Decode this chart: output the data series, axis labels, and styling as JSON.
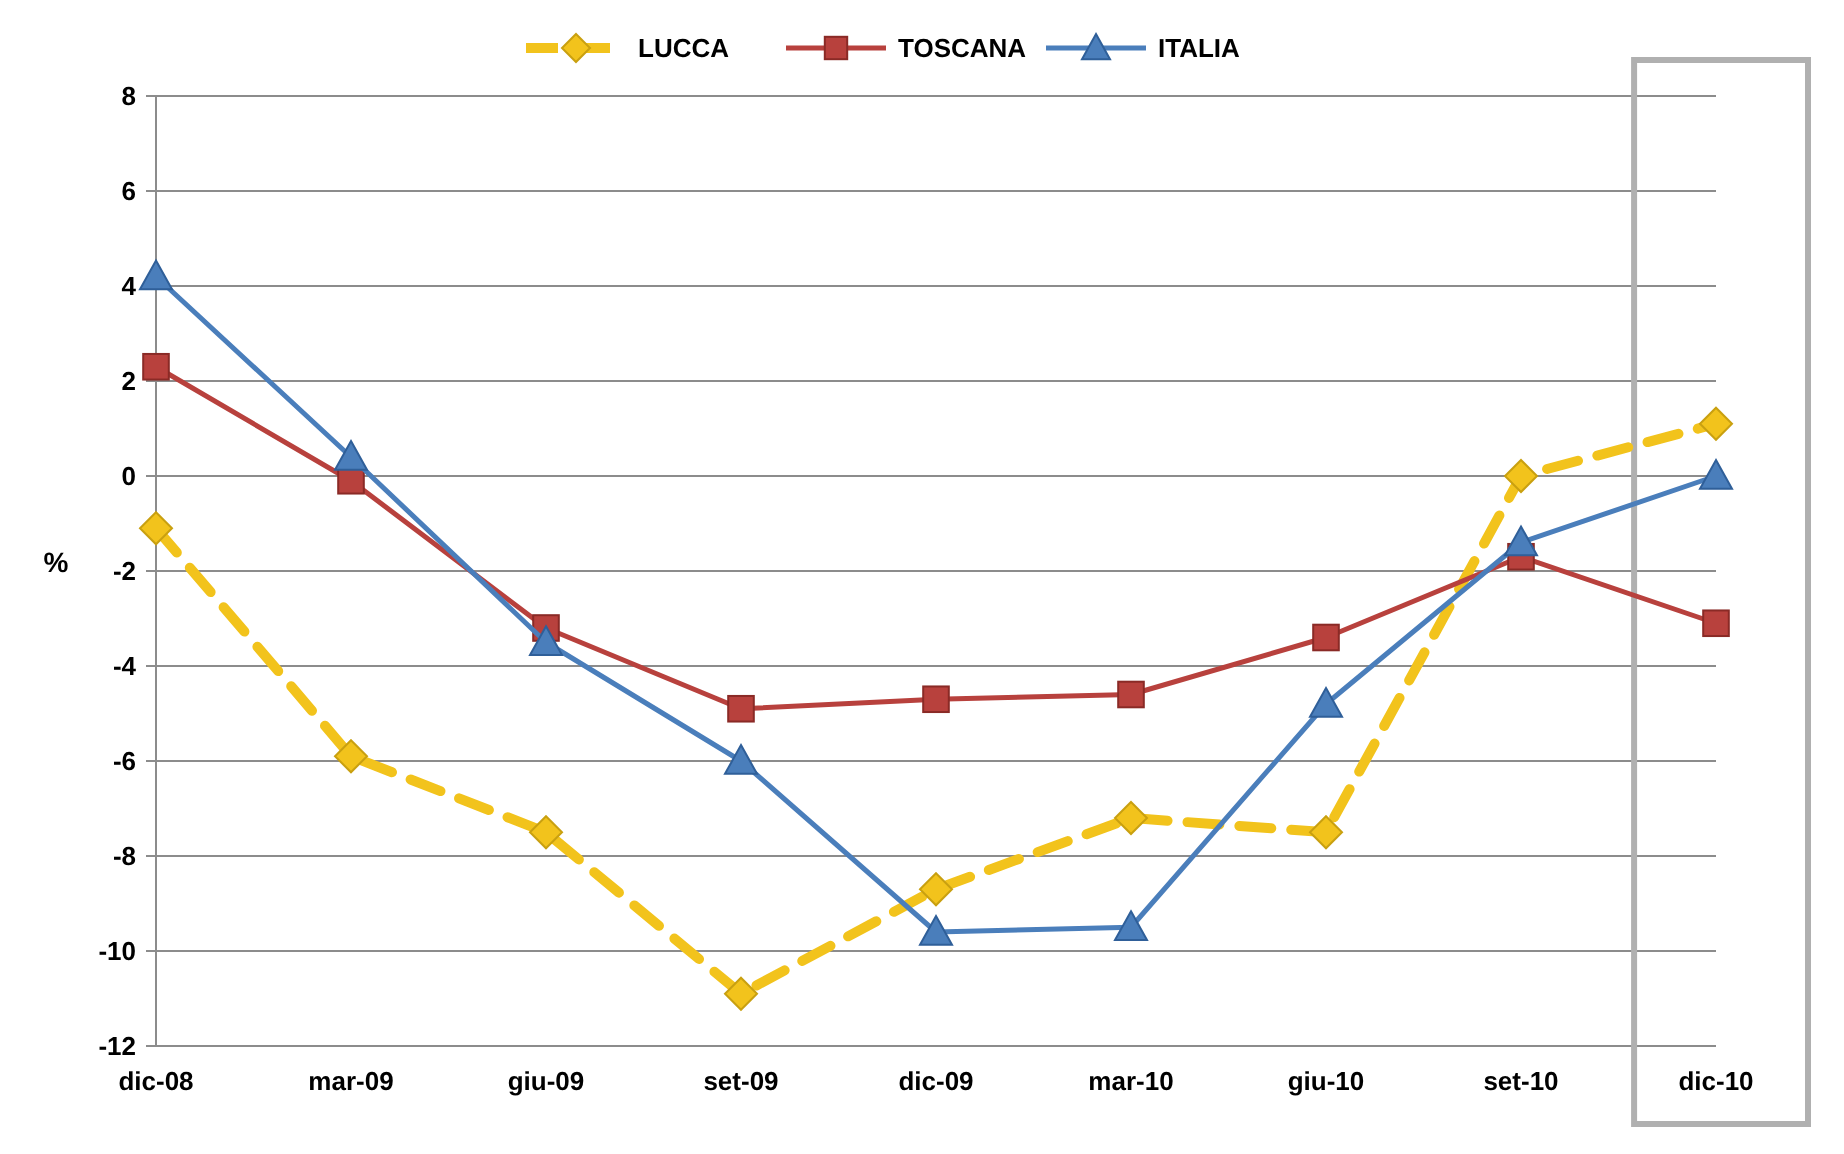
{
  "chart_data": {
    "type": "line",
    "ylabel": "%",
    "categories": [
      "dic-08",
      "mar-09",
      "giu-09",
      "set-09",
      "dic-09",
      "mar-10",
      "giu-10",
      "set-10",
      "dic-10"
    ],
    "series": [
      {
        "name": "LUCCA",
        "color": "#f2c31c",
        "marker": "diamond",
        "line_style": "dashed",
        "values": [
          -1.1,
          -5.9,
          -7.5,
          -10.9,
          -8.7,
          -7.2,
          -7.5,
          0.0,
          1.1
        ]
      },
      {
        "name": "TOSCANA",
        "color": "#b8413d",
        "marker": "square",
        "line_style": "solid",
        "values": [
          2.3,
          -0.1,
          -3.2,
          -4.9,
          -4.7,
          -4.6,
          -3.4,
          -1.7,
          -3.1
        ]
      },
      {
        "name": "ITALIA",
        "color": "#4a7ebb",
        "marker": "triangle",
        "line_style": "solid",
        "values": [
          4.2,
          0.4,
          -3.5,
          -6.0,
          -9.6,
          -9.5,
          -4.8,
          -1.4,
          0.0
        ]
      }
    ],
    "ylim": [
      -12,
      8
    ],
    "yticks": [
      -12,
      -10,
      -8,
      -6,
      -4,
      -2,
      0,
      2,
      4,
      6,
      8
    ],
    "grid": "y",
    "legend": "top"
  }
}
